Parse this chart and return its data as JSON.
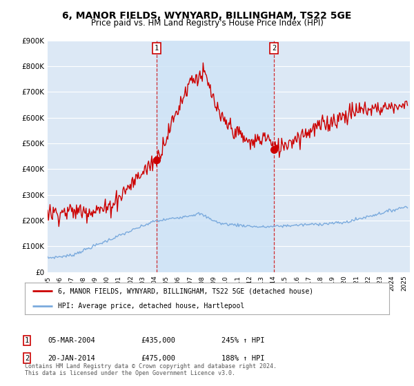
{
  "title": "6, MANOR FIELDS, WYNYARD, BILLINGHAM, TS22 5GE",
  "subtitle": "Price paid vs. HM Land Registry's House Price Index (HPI)",
  "ylabel_ticks": [
    "£0",
    "£100K",
    "£200K",
    "£300K",
    "£400K",
    "£500K",
    "£600K",
    "£700K",
    "£800K",
    "£900K"
  ],
  "ylim": [
    0,
    900000
  ],
  "xlim_start": 1995.0,
  "xlim_end": 2025.5,
  "sale1_date": 2004.17,
  "sale1_price": 435000,
  "sale2_date": 2014.05,
  "sale2_price": 475000,
  "legend_property": "6, MANOR FIELDS, WYNYARD, BILLINGHAM, TS22 5GE (detached house)",
  "legend_hpi": "HPI: Average price, detached house, Hartlepool",
  "footnote": "Contains HM Land Registry data © Crown copyright and database right 2024.\nThis data is licensed under the Open Government Licence v3.0.",
  "property_color": "#cc0000",
  "hpi_color": "#7aaadd",
  "vline_color": "#cc0000",
  "shade_color": "#d0e4f7",
  "background_color": "#ffffff",
  "plot_bg_color": "#dce8f5",
  "grid_color": "#ffffff"
}
